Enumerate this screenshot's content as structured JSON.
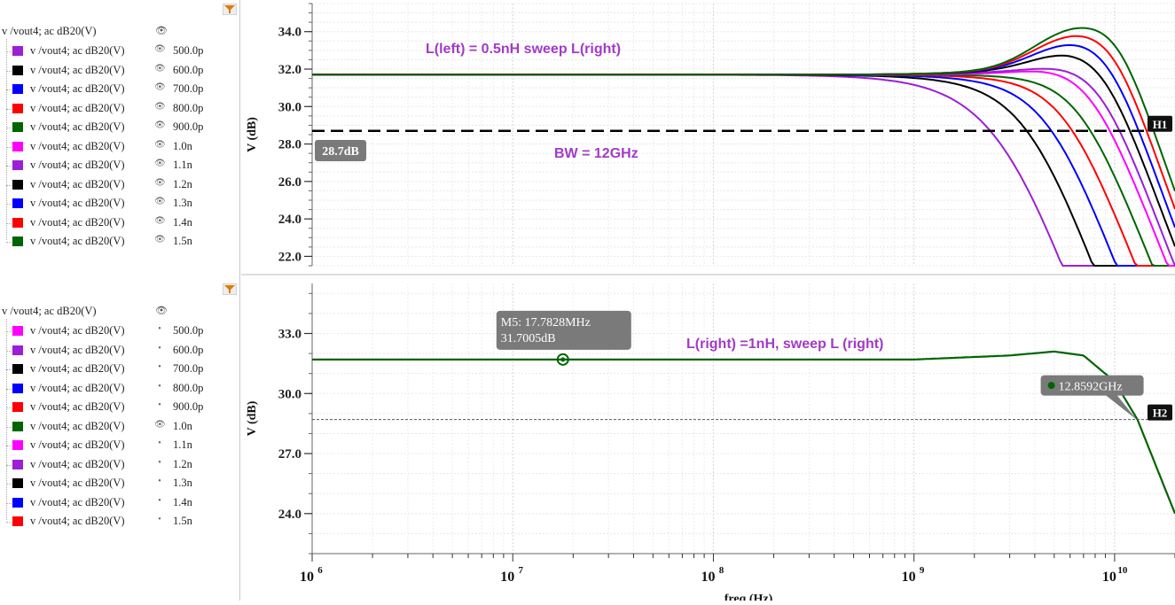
{
  "legend_top": {
    "root_label": "v /vout4; ac dB20(V)",
    "entries": [
      {
        "label": "v /vout4; ac dB20(V)",
        "value": "500.0p",
        "color": "#9b1fd6",
        "visible": true
      },
      {
        "label": "v /vout4; ac dB20(V)",
        "value": "600.0p",
        "color": "#000000",
        "visible": true
      },
      {
        "label": "v /vout4; ac dB20(V)",
        "value": "700.0p",
        "color": "#0000ff",
        "visible": true
      },
      {
        "label": "v /vout4; ac dB20(V)",
        "value": "800.0p",
        "color": "#ff0000",
        "visible": true
      },
      {
        "label": "v /vout4; ac dB20(V)",
        "value": "900.0p",
        "color": "#006400",
        "visible": true
      },
      {
        "label": "v /vout4; ac dB20(V)",
        "value": "1.0n",
        "color": "#ff00ff",
        "visible": true
      },
      {
        "label": "v /vout4; ac dB20(V)",
        "value": "1.1n",
        "color": "#9b1fd6",
        "visible": true
      },
      {
        "label": "v /vout4; ac dB20(V)",
        "value": "1.2n",
        "color": "#000000",
        "visible": true
      },
      {
        "label": "v /vout4; ac dB20(V)",
        "value": "1.3n",
        "color": "#0000ff",
        "visible": true
      },
      {
        "label": "v /vout4; ac dB20(V)",
        "value": "1.4n",
        "color": "#ff0000",
        "visible": true
      },
      {
        "label": "v /vout4; ac dB20(V)",
        "value": "1.5n",
        "color": "#006400",
        "visible": true
      }
    ]
  },
  "legend_bottom": {
    "root_label": "v /vout4; ac dB20(V)",
    "entries": [
      {
        "label": "v /vout4; ac dB20(V)",
        "value": "500.0p",
        "color": "#ff00ff",
        "visible": false
      },
      {
        "label": "v /vout4; ac dB20(V)",
        "value": "600.0p",
        "color": "#9b1fd6",
        "visible": false
      },
      {
        "label": "v /vout4; ac dB20(V)",
        "value": "700.0p",
        "color": "#000000",
        "visible": false
      },
      {
        "label": "v /vout4; ac dB20(V)",
        "value": "800.0p",
        "color": "#0000ff",
        "visible": false
      },
      {
        "label": "v /vout4; ac dB20(V)",
        "value": "900.0p",
        "color": "#ff0000",
        "visible": false
      },
      {
        "label": "v /vout4; ac dB20(V)",
        "value": "1.0n",
        "color": "#006400",
        "visible": true
      },
      {
        "label": "v /vout4; ac dB20(V)",
        "value": "1.1n",
        "color": "#ff00ff",
        "visible": false
      },
      {
        "label": "v /vout4; ac dB20(V)",
        "value": "1.2n",
        "color": "#9b1fd6",
        "visible": false
      },
      {
        "label": "v /vout4; ac dB20(V)",
        "value": "1.3n",
        "color": "#000000",
        "visible": false
      },
      {
        "label": "v /vout4; ac dB20(V)",
        "value": "1.4n",
        "color": "#0000ff",
        "visible": false
      },
      {
        "label": "v /vout4; ac dB20(V)",
        "value": "1.5n",
        "color": "#ff0000",
        "visible": false
      }
    ]
  },
  "chart_data": [
    {
      "type": "line",
      "xscale": "log",
      "xlim": [
        1000000,
        20000000000
      ],
      "ylim": [
        21.5,
        35.5
      ],
      "ylabel": "V (dB)",
      "yticks": [
        "34.0",
        "32.0",
        "30.0",
        "28.0",
        "26.0",
        "24.0",
        "22.0"
      ],
      "annotations": [
        "L(left) = 0.5nH sweep L(right)",
        "BW = 12GHz"
      ],
      "hline": {
        "label": "H1",
        "value": 28.7,
        "tag": "28.7dB"
      },
      "base_db": 31.7,
      "series": [
        {
          "name": "500.0p",
          "color": "#9b1fd6",
          "peak": 0.0,
          "fp": 3000000000.0,
          "q": 0.55,
          "fz": 9000000000.0
        },
        {
          "name": "600.0p",
          "color": "#000000",
          "peak": 0.0,
          "fp": 4000000000.0,
          "q": 0.6,
          "fz": 9500000000.0
        },
        {
          "name": "700.0p",
          "color": "#0000ff",
          "peak": 0.0,
          "fp": 5000000000.0,
          "q": 0.62,
          "fz": 10000000000.0
        },
        {
          "name": "800.0p",
          "color": "#ff0000",
          "peak": 0.0,
          "fp": 6000000000.0,
          "q": 0.64,
          "fz": 10500000000.0
        },
        {
          "name": "900.0p",
          "color": "#006400",
          "peak": 0.0,
          "fp": 7000000000.0,
          "q": 0.66,
          "fz": 11000000000.0
        },
        {
          "name": "1.0n",
          "color": "#ff00ff",
          "peak": 0.6,
          "fp": 8000000000.0,
          "q": 0.7,
          "fz": 11500000000.0
        },
        {
          "name": "1.1n",
          "color": "#9b1fd6",
          "peak": 0.2,
          "fp": 8500000000.0,
          "q": 0.75,
          "fz": 12000000000.0
        },
        {
          "name": "1.2n",
          "color": "#000000",
          "peak": 1.2,
          "fp": 9000000000.0,
          "q": 0.8,
          "fz": 12000000000.0
        },
        {
          "name": "1.3n",
          "color": "#0000ff",
          "peak": 1.8,
          "fp": 9500000000.0,
          "q": 0.85,
          "fz": 12000000000.0
        },
        {
          "name": "1.4n",
          "color": "#ff0000",
          "peak": 2.3,
          "fp": 10000000000.0,
          "q": 0.9,
          "fz": 12000000000.0
        },
        {
          "name": "1.5n",
          "color": "#006400",
          "peak": 2.8,
          "fp": 10500000000.0,
          "q": 0.95,
          "fz": 12000000000.0
        }
      ]
    },
    {
      "type": "line",
      "xscale": "log",
      "xlim": [
        1000000,
        20000000000
      ],
      "ylim": [
        22.0,
        35.5
      ],
      "ylabel": "V (dB)",
      "xlabel": "freq (Hz)",
      "yticks": [
        "33.0",
        "30.0",
        "27.0",
        "24.0"
      ],
      "xticks": [
        {
          "base": "10",
          "exp": "6"
        },
        {
          "base": "10",
          "exp": "7"
        },
        {
          "base": "10",
          "exp": "8"
        },
        {
          "base": "10",
          "exp": "9"
        },
        {
          "base": "10",
          "exp": "10"
        }
      ],
      "annotations": [
        "L(right) =1nH, sweep L (right)"
      ],
      "hline": {
        "label": "H2",
        "value": 28.7
      },
      "marker": {
        "name": "M5",
        "x": 17782800,
        "y": 31.7005,
        "line1": "M5: 17.7828MHz",
        "line2": "31.7005dB"
      },
      "bw_marker": {
        "x": 12859200000,
        "label": "12.8592GHz"
      },
      "series": [
        {
          "name": "1.0n",
          "color": "#006400",
          "x": [
            1000000.0,
            100000000.0,
            1000000000.0,
            3000000000.0,
            5000000000.0,
            7000000000.0,
            10000000000.0,
            13000000000.0,
            20000000000.0
          ],
          "y": [
            31.7,
            31.7,
            31.7,
            31.9,
            32.1,
            31.9,
            30.6,
            28.7,
            24.0
          ]
        }
      ]
    }
  ]
}
